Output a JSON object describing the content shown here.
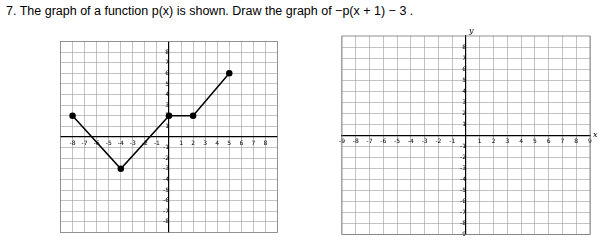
{
  "header": {
    "title": "7. The graph of a function p(x) is shown. Draw the graph of  −p(x + 1) − 3 ."
  },
  "chart_data": [
    {
      "type": "line",
      "x": [
        -8,
        -4,
        0,
        2,
        5
      ],
      "values": [
        2,
        -3,
        2,
        2,
        6
      ],
      "color": "#000000",
      "marker": "circle",
      "xlim": [
        -9,
        9
      ],
      "xticks": [
        -8,
        -7,
        -6,
        -5,
        -4,
        -3,
        -2,
        -1,
        1,
        2,
        3,
        4,
        5,
        6,
        7,
        8
      ],
      "ylim": [
        -9,
        9
      ],
      "yticks": [
        -8,
        -7,
        -6,
        -5,
        -4,
        -3,
        -2,
        -1,
        1,
        2,
        3,
        4,
        5,
        6,
        7,
        8
      ],
      "grid": true
    },
    {
      "type": "line",
      "x_label": "x",
      "y_label": "y",
      "xlim": [
        -9,
        9
      ],
      "xticks": [
        -9,
        -8,
        -7,
        -6,
        -5,
        -4,
        -3,
        -2,
        -1,
        1,
        2,
        3,
        4,
        5,
        6,
        7,
        8,
        9
      ],
      "ylim": [
        -9,
        9
      ],
      "yticks": [
        -9,
        -8,
        -7,
        -6,
        -5,
        -4,
        -3,
        -2,
        -1,
        1,
        2,
        3,
        4,
        5,
        6,
        7,
        8
      ],
      "grid": true
    }
  ]
}
